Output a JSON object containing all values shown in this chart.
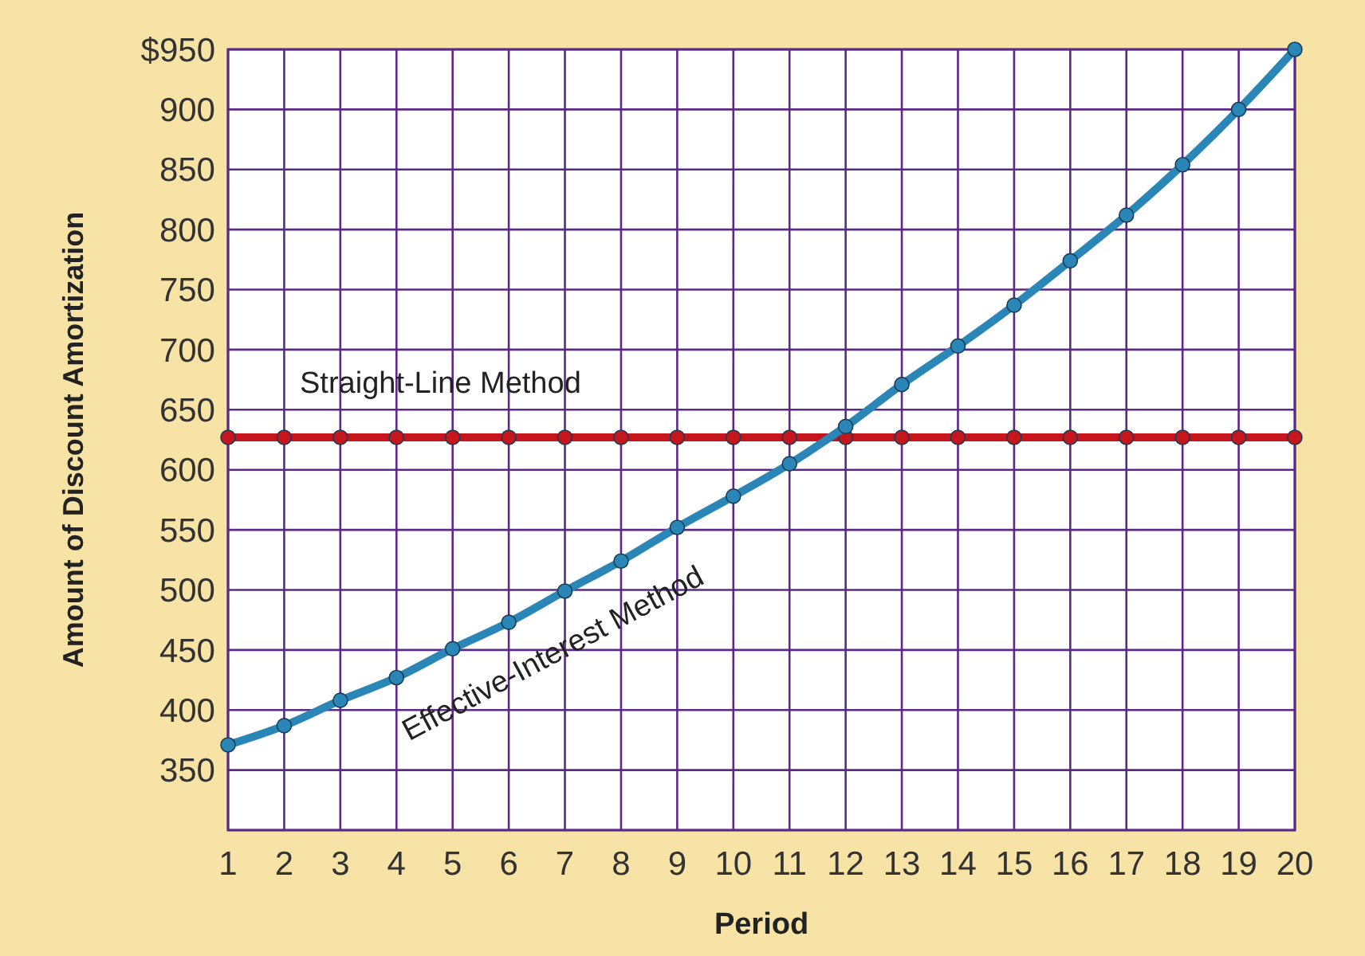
{
  "chart_data": {
    "type": "line",
    "xlabel": "Period",
    "ylabel": "Amount of Discount Amortization",
    "x": [
      1,
      2,
      3,
      4,
      5,
      6,
      7,
      8,
      9,
      10,
      11,
      12,
      13,
      14,
      15,
      16,
      17,
      18,
      19,
      20
    ],
    "xlim": [
      1,
      20
    ],
    "xticks": [
      1,
      2,
      3,
      4,
      5,
      6,
      7,
      8,
      9,
      10,
      11,
      12,
      13,
      14,
      15,
      16,
      17,
      18,
      19,
      20
    ],
    "ylim": [
      300,
      950
    ],
    "yticks": [
      {
        "value": 300,
        "label": null
      },
      350,
      400,
      450,
      500,
      550,
      600,
      650,
      700,
      750,
      800,
      850,
      900,
      {
        "value": 950,
        "label": "$950"
      }
    ],
    "grid": true,
    "legend": false,
    "marker": "circle",
    "line_style": "solid",
    "series": [
      {
        "name": "Straight-Line Method",
        "color": "#c4161c",
        "values": [
          627,
          627,
          627,
          627,
          627,
          627,
          627,
          627,
          627,
          627,
          627,
          627,
          627,
          627,
          627,
          627,
          627,
          627,
          627,
          627
        ]
      },
      {
        "name": "Effective-Interest Method",
        "color": "#2b86b8",
        "values": [
          371,
          387,
          408,
          427,
          451,
          473,
          499,
          524,
          552,
          578,
          605,
          636,
          671,
          703,
          737,
          774,
          812,
          854,
          900,
          950
        ]
      }
    ]
  }
}
